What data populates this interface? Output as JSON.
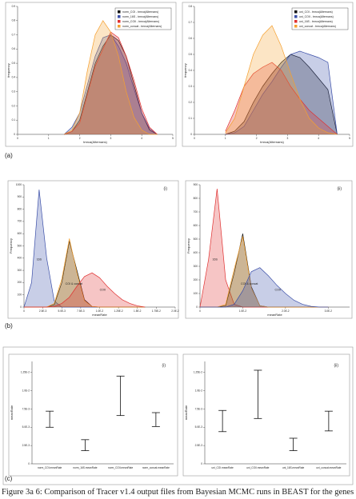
{
  "panel_labels": [
    "(a)",
    "(b)",
    "(c)"
  ],
  "caption": "Figure 3a 6: Comparison of Tracer v1.4 output files from Bayesian MCMC runs in BEAST for the genes used",
  "chart_data": [
    {
      "type": "area",
      "panel_label": "(i)",
      "x_label": "tmrca(Alternans)",
      "y_label": "frequency",
      "legend": "upper right",
      "x": [
        1.5,
        1.75,
        2.0,
        2.25,
        2.5,
        2.75,
        3.0,
        3.25,
        3.5,
        3.75,
        4.0,
        4.25,
        4.5
      ],
      "xlim": [
        0,
        5
      ],
      "xticks": [
        0,
        1,
        2,
        3,
        4,
        5
      ],
      "ylim": [
        0,
        0.9
      ],
      "yticks": [
        0,
        0.1,
        0.2,
        0.3,
        0.4,
        0.5,
        0.6,
        0.7,
        0.8,
        0.9
      ],
      "series": [
        {
          "name": "norm_COI - tmrca(Alternans)",
          "color": "#111111",
          "values": [
            0,
            0.02,
            0.1,
            0.3,
            0.5,
            0.62,
            0.7,
            0.66,
            0.55,
            0.35,
            0.15,
            0.03,
            0
          ]
        },
        {
          "name": "norm_16S - tmrca(Alternans)",
          "color": "#3b4fa8",
          "values": [
            0,
            0.05,
            0.15,
            0.35,
            0.55,
            0.68,
            0.7,
            0.62,
            0.5,
            0.32,
            0.15,
            0.04,
            0
          ]
        },
        {
          "name": "norm_COII - tmrca(Alternans)",
          "color": "#e03030",
          "values": [
            0,
            0.02,
            0.08,
            0.28,
            0.48,
            0.6,
            0.72,
            0.68,
            0.55,
            0.38,
            0.18,
            0.05,
            0
          ]
        },
        {
          "name": "norm_concat - tmrca(Alternans)",
          "color": "#f5a030",
          "values": [
            0,
            0.03,
            0.15,
            0.45,
            0.7,
            0.8,
            0.72,
            0.55,
            0.3,
            0.12,
            0.03,
            0,
            0
          ]
        }
      ]
    },
    {
      "type": "area",
      "panel_label": "(ii)",
      "x_label": "tmrca(Alternans)",
      "y_label": "frequency",
      "legend": "upper right",
      "x": [
        1.0,
        1.3,
        1.6,
        1.9,
        2.2,
        2.5,
        2.8,
        3.1,
        3.4,
        3.7,
        4.0,
        4.3,
        4.6
      ],
      "xlim": [
        0,
        5
      ],
      "xticks": [
        0,
        1,
        2,
        3,
        4,
        5
      ],
      "ylim": [
        0,
        0.8
      ],
      "yticks": [
        0,
        0.1,
        0.2,
        0.3,
        0.4,
        0.5,
        0.6,
        0.7,
        0.8
      ],
      "series": [
        {
          "name": "uni_COI - tmrca(Alternans)",
          "color": "#111111",
          "values": [
            0,
            0.02,
            0.08,
            0.2,
            0.3,
            0.38,
            0.45,
            0.5,
            0.48,
            0.42,
            0.35,
            0.28,
            0
          ]
        },
        {
          "name": "uni_COII - tmrca(Alternans)",
          "color": "#3b4fa8",
          "values": [
            0,
            0.01,
            0.05,
            0.15,
            0.25,
            0.33,
            0.42,
            0.5,
            0.52,
            0.5,
            0.48,
            0.45,
            0
          ]
        },
        {
          "name": "uni_16S - tmrca(Alternans)",
          "color": "#e03030",
          "values": [
            0.02,
            0.15,
            0.3,
            0.38,
            0.42,
            0.45,
            0.4,
            0.3,
            0.22,
            0.15,
            0.1,
            0.05,
            0
          ]
        },
        {
          "name": "uni_concat - tmrca(Alternans)",
          "color": "#f5a030",
          "values": [
            0.01,
            0.1,
            0.3,
            0.5,
            0.62,
            0.68,
            0.55,
            0.38,
            0.22,
            0.1,
            0.04,
            0.01,
            0
          ]
        }
      ]
    },
    {
      "type": "area",
      "panel_label": "(i)",
      "x_label": "meanRate",
      "y_label": "Frequency",
      "annotations": [
        "16S",
        "COI & concat",
        "COII"
      ],
      "x": [
        0,
        0.001,
        0.002,
        0.003,
        0.004,
        0.005,
        0.006,
        0.007,
        0.008,
        0.009,
        0.01,
        0.011,
        0.012,
        0.013,
        0.014,
        0.015,
        0.016
      ],
      "xlim": [
        0,
        0.02
      ],
      "xticks": [
        {
          "value": 0,
          "label": "0"
        },
        {
          "value": 0.0025,
          "label": "2.5E-3"
        },
        {
          "value": 0.005,
          "label": "5.0E-3"
        },
        {
          "value": 0.0075,
          "label": "7.5E-3"
        },
        {
          "value": 0.01,
          "label": "1.0E-2"
        },
        {
          "value": 0.0125,
          "label": "1.25E-2"
        },
        {
          "value": 0.015,
          "label": "1.5E-2"
        },
        {
          "value": 0.0175,
          "label": "1.75E-2"
        },
        {
          "value": 0.02,
          "label": "2.0E-2"
        }
      ],
      "ylim": [
        0,
        1000
      ],
      "yticks": [
        0,
        100,
        200,
        300,
        400,
        500,
        600,
        700,
        800,
        900,
        1000
      ],
      "series": [
        {
          "color": "#3b4fa8",
          "values": [
            0,
            200,
            960,
            400,
            50,
            0,
            0,
            0,
            0,
            0,
            0,
            0,
            0,
            0,
            0,
            0,
            0
          ]
        },
        {
          "color": "#111111",
          "values": [
            0,
            0,
            0,
            0,
            20,
            200,
            540,
            300,
            60,
            5,
            0,
            0,
            0,
            0,
            0,
            0,
            0
          ]
        },
        {
          "color": "#f5a030",
          "values": [
            0,
            0,
            0,
            0,
            30,
            230,
            560,
            280,
            50,
            5,
            0,
            0,
            0,
            0,
            0,
            0,
            0
          ]
        },
        {
          "color": "#e03030",
          "values": [
            0,
            0,
            0,
            0,
            5,
            30,
            80,
            170,
            250,
            280,
            240,
            170,
            110,
            60,
            30,
            10,
            0
          ]
        }
      ]
    },
    {
      "type": "area",
      "panel_label": "(ii)",
      "x_label": "meanRate",
      "y_label": "Frequency",
      "annotations": [
        "16S",
        "COI & concat",
        "COII"
      ],
      "x": [
        0,
        0.002,
        0.004,
        0.006,
        0.008,
        0.01,
        0.012,
        0.014,
        0.016,
        0.018,
        0.02,
        0.022,
        0.024,
        0.026,
        0.028,
        0.03
      ],
      "xlim": [
        0,
        0.035
      ],
      "xticks": [
        {
          "value": 0,
          "label": "0"
        },
        {
          "value": 0.01,
          "label": "1.0E-2"
        },
        {
          "value": 0.02,
          "label": "2.0E-2"
        },
        {
          "value": 0.03,
          "label": "3.0E-2"
        }
      ],
      "ylim": [
        0,
        900
      ],
      "yticks": [
        0,
        100,
        200,
        300,
        400,
        500,
        600,
        700,
        800,
        900
      ],
      "series": [
        {
          "color": "#e03030",
          "values": [
            0,
            350,
            870,
            200,
            20,
            0,
            0,
            0,
            0,
            0,
            0,
            0,
            0,
            0,
            0,
            0
          ]
        },
        {
          "color": "#111111",
          "values": [
            0,
            0,
            0,
            10,
            250,
            540,
            150,
            10,
            0,
            0,
            0,
            0,
            0,
            0,
            0,
            0
          ]
        },
        {
          "color": "#f5a030",
          "values": [
            0,
            0,
            0,
            20,
            280,
            520,
            140,
            10,
            0,
            0,
            0,
            0,
            0,
            0,
            0,
            0
          ]
        },
        {
          "color": "#3b4fa8",
          "values": [
            0,
            0,
            0,
            0,
            20,
            120,
            260,
            290,
            230,
            160,
            100,
            50,
            20,
            5,
            0,
            0
          ]
        }
      ]
    },
    {
      "type": "errorbar",
      "panel_label": "(i)",
      "y_label": "meanRate",
      "categories": [
        "norm_COI.meanRate",
        "norm_16S.meanRate",
        "norm_COII.meanRate",
        "norm_concat.meanRate"
      ],
      "low": [
        0.005,
        0.0018,
        0.0066,
        0.0051
      ],
      "high": [
        0.0072,
        0.0033,
        0.012,
        0.007
      ],
      "ylim": [
        0,
        0.014
      ],
      "yticks": [
        {
          "value": 0,
          "label": "0"
        },
        {
          "value": 0.0025,
          "label": "2.5E-3"
        },
        {
          "value": 0.005,
          "label": "5.0E-3"
        },
        {
          "value": 0.0075,
          "label": "7.5E-3"
        },
        {
          "value": 0.01,
          "label": "1.0E-2"
        },
        {
          "value": 0.0125,
          "label": "1.25E-2"
        }
      ]
    },
    {
      "type": "errorbar",
      "panel_label": "(ii)",
      "y_label": "meanRate",
      "categories": [
        "uni_COI.meanRate",
        "uni_COII.meanRate",
        "uni_16S.meanRate",
        "uni_concat.meanRate"
      ],
      "low": [
        0.0044,
        0.0062,
        0.0018,
        0.0045
      ],
      "high": [
        0.0073,
        0.0128,
        0.0035,
        0.0072
      ],
      "ylim": [
        0,
        0.014
      ],
      "yticks": [
        {
          "value": 0,
          "label": "0"
        },
        {
          "value": 0.0025,
          "label": "2.5E-3"
        },
        {
          "value": 0.005,
          "label": "5.0E-3"
        },
        {
          "value": 0.0075,
          "label": "7.5E-3"
        },
        {
          "value": 0.01,
          "label": "1.0E-2"
        },
        {
          "value": 0.0125,
          "label": "1.25E-2"
        }
      ]
    }
  ]
}
